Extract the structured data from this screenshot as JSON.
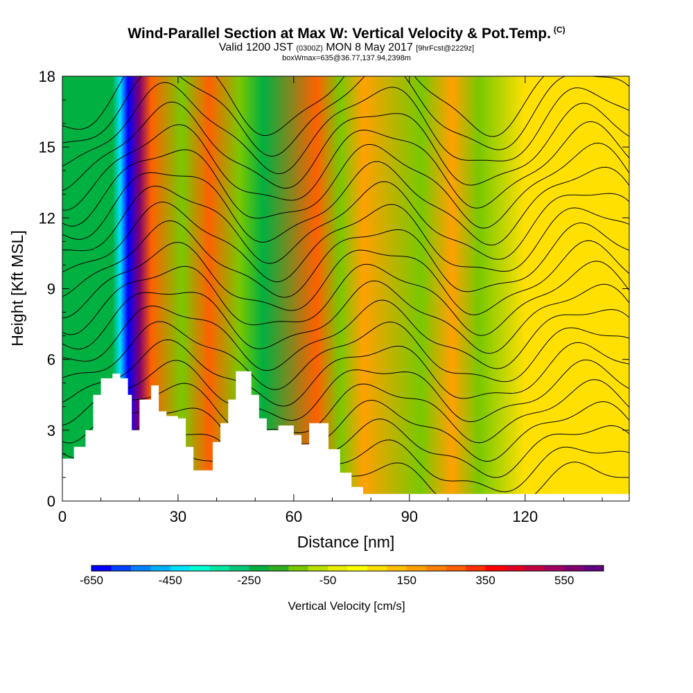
{
  "title": "Wind-Parallel Section at Max W: Vertical Velocity & Pot.Temp.",
  "copyright": "(C)",
  "subtitle": {
    "valid_prefix": "Valid 1200 JST",
    "utc": "(0300Z)",
    "date": "MON 8 May 2017",
    "forecast": "[9hrFcst@2229z]"
  },
  "box_info": "boxWmax=635@36.77,137.94,2398m",
  "chart_data": {
    "type": "heatmap",
    "xlabel": "Distance [nm]",
    "ylabel": "Height [Kft MSL]",
    "xlim": [
      0,
      147
    ],
    "ylim": [
      0,
      18
    ],
    "x_ticks": [
      0,
      30,
      60,
      90,
      120
    ],
    "y_ticks": [
      0,
      3,
      6,
      9,
      12,
      15,
      18
    ],
    "colorbar": {
      "title": "Vertical Velocity [cm/s]",
      "labels": [
        "-650",
        "-450",
        "-250",
        "-50",
        "150",
        "350",
        "550"
      ],
      "colors": [
        "#0000ff",
        "#0040ff",
        "#0080ff",
        "#00b0ff",
        "#00e0ff",
        "#00ffd0",
        "#00e8a0",
        "#00c878",
        "#00b040",
        "#30b020",
        "#78c800",
        "#b8e000",
        "#e8f000",
        "#ffff00",
        "#ffe000",
        "#ffc000",
        "#ffa000",
        "#ff8000",
        "#ff6000",
        "#ff3000",
        "#ff0000",
        "#e00020",
        "#c00040",
        "#a00060",
        "#800070",
        "#600080"
      ]
    },
    "velocity_bands": [
      {
        "center": 13,
        "value": -250
      },
      {
        "center": 15,
        "value": -450
      },
      {
        "center": 17,
        "value": -650
      },
      {
        "center": 20,
        "value": 550
      },
      {
        "center": 23,
        "value": 250
      },
      {
        "center": 31,
        "value": -150
      },
      {
        "center": 38,
        "value": 250
      },
      {
        "center": 46,
        "value": -150
      },
      {
        "center": 52,
        "value": -250
      },
      {
        "center": 66,
        "value": 250
      },
      {
        "center": 72,
        "value": -150
      },
      {
        "center": 78,
        "value": 150
      },
      {
        "center": 93,
        "value": -150
      },
      {
        "center": 101,
        "value": 150
      },
      {
        "center": 108,
        "value": -150
      },
      {
        "center": 120,
        "value": 50
      }
    ],
    "terrain_kft": [
      [
        0,
        1.8
      ],
      [
        3,
        2.3
      ],
      [
        6,
        3.0
      ],
      [
        8,
        4.5
      ],
      [
        10,
        5.2
      ],
      [
        13,
        5.4
      ],
      [
        15,
        5.2
      ],
      [
        17,
        4.5
      ],
      [
        18,
        3.0
      ],
      [
        20,
        4.3
      ],
      [
        23,
        4.9
      ],
      [
        25,
        3.8
      ],
      [
        27,
        3.6
      ],
      [
        30,
        3.5
      ],
      [
        32,
        2.3
      ],
      [
        34,
        1.3
      ],
      [
        37,
        1.3
      ],
      [
        39,
        2.5
      ],
      [
        41,
        3.3
      ],
      [
        43,
        4.3
      ],
      [
        45,
        5.5
      ],
      [
        47,
        5.5
      ],
      [
        49,
        4.5
      ],
      [
        51,
        3.5
      ],
      [
        53,
        3.0
      ],
      [
        56,
        3.2
      ],
      [
        58,
        3.2
      ],
      [
        60,
        2.8
      ],
      [
        62,
        2.4
      ],
      [
        64,
        3.3
      ],
      [
        67,
        3.3
      ],
      [
        69,
        2.2
      ],
      [
        72,
        1.2
      ],
      [
        75,
        0.6
      ],
      [
        78,
        0.3
      ],
      [
        100,
        0.3
      ],
      [
        147,
        0.3
      ]
    ]
  }
}
